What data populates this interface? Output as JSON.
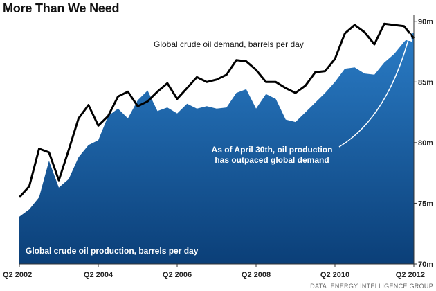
{
  "title": "More Than We Need",
  "chart_data": {
    "type": "area",
    "title": "More Than We Need",
    "xlabel": "",
    "ylabel": "",
    "x_tick_labels": [
      "Q2 2002",
      "Q2 2004",
      "Q2 2006",
      "Q2 2008",
      "Q2 2010",
      "Q2 2012"
    ],
    "y_tick_labels": [
      "70m",
      "75m",
      "80m",
      "85m",
      "90m"
    ],
    "y_ticks": [
      70,
      75,
      80,
      85,
      90
    ],
    "ylim": [
      70,
      90.5
    ],
    "quarters_start": "Q2 2002",
    "series": [
      {
        "name": "Global crude oil production, barrels per day",
        "kind": "area",
        "color": "#1b68b0",
        "values": [
          73.9,
          74.5,
          75.5,
          78.5,
          76.3,
          77.0,
          78.8,
          79.8,
          80.2,
          82.2,
          82.8,
          82.0,
          83.5,
          84.3,
          82.6,
          82.9,
          82.4,
          83.2,
          82.8,
          83.0,
          82.8,
          82.9,
          84.1,
          84.4,
          82.8,
          84.0,
          83.6,
          81.9,
          81.7,
          82.5,
          83.3,
          84.1,
          85.0,
          86.1,
          86.2,
          85.7,
          85.6,
          86.6,
          87.3,
          88.3,
          89.1
        ]
      },
      {
        "name": "Global crude oil demand, barrels per day",
        "kind": "line",
        "color": "#000000",
        "values": [
          75.5,
          76.4,
          79.5,
          79.2,
          76.9,
          79.4,
          82.0,
          83.1,
          81.4,
          82.2,
          83.8,
          84.2,
          83.0,
          83.4,
          84.2,
          84.9,
          83.6,
          84.5,
          85.4,
          85.0,
          85.2,
          85.6,
          86.8,
          86.7,
          86.0,
          85.0,
          85.0,
          84.5,
          84.1,
          84.7,
          85.8,
          85.9,
          86.9,
          89.0,
          89.7,
          89.1,
          88.1,
          89.8,
          89.7,
          89.6,
          88.6
        ]
      }
    ],
    "annotations": [
      {
        "name": "demand-label",
        "text": "Global crude oil demand, barrels per day"
      },
      {
        "name": "production-label",
        "text": "Global crude oil production, barrels per day"
      },
      {
        "name": "callout-line1",
        "text": "As of April 30th, oil production"
      },
      {
        "name": "callout-line2",
        "text": "has outpaced global demand"
      }
    ],
    "grid": false,
    "legend": "none",
    "source": "DATA: ENERGY INTELLIGENCE GROUP"
  }
}
